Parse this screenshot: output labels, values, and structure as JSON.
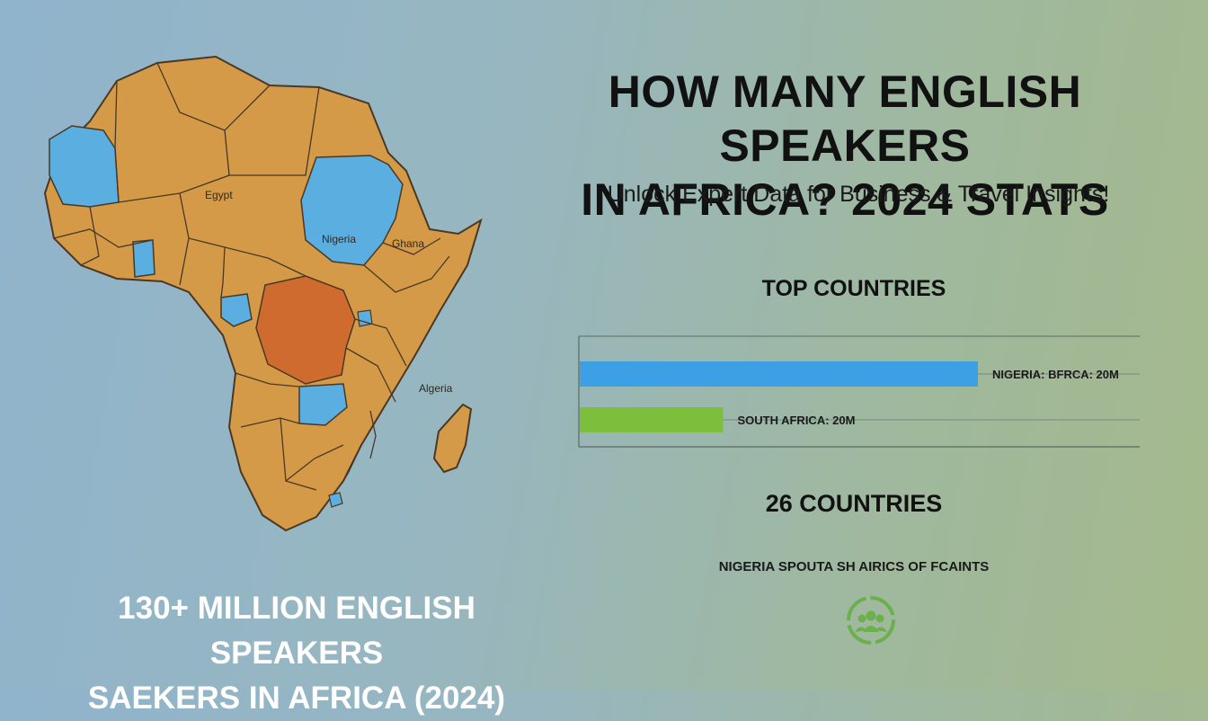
{
  "page": {
    "title_lines": [
      "HOW MANY ENGLISH SPEAKERS",
      "IN AFRICA? 2024 STATS"
    ],
    "subtitle": "Unlock Expert Data for Business & Travel Insights!"
  },
  "map": {
    "labels": {
      "egypt": "Egypt",
      "nigeria": "Nigeria",
      "ghana": "Ghana",
      "algeria": "Algeria"
    },
    "colors": {
      "land": "#d49a48",
      "highlight": "#5aaee0",
      "accent": "#cf6b2f",
      "border": "#4a3824"
    }
  },
  "top_countries": {
    "heading": "TOP COUNTRIES",
    "chart_data": {
      "type": "bar",
      "orientation": "horizontal",
      "categories": [
        "NIGERIA: BFRCA: 20M",
        "SOUTH AFRICA: 20M"
      ],
      "values": [
        1.0,
        0.36
      ],
      "value_scale": "relative bar length",
      "colors": [
        "#3ea0e4",
        "#7cbf3c"
      ],
      "grid": true
    }
  },
  "countries_count": "26 COUNTRIES",
  "caption": "NIGERIA SPOUTA SH AIRICS OF FCAINTS",
  "icon": {
    "name": "people-group-icon",
    "color": "#6ab04c"
  },
  "footer": {
    "lines": [
      "130+ MILLION ENGLISH SPEAKERS",
      "SAEKERS IN AFRICA (2024)"
    ]
  }
}
